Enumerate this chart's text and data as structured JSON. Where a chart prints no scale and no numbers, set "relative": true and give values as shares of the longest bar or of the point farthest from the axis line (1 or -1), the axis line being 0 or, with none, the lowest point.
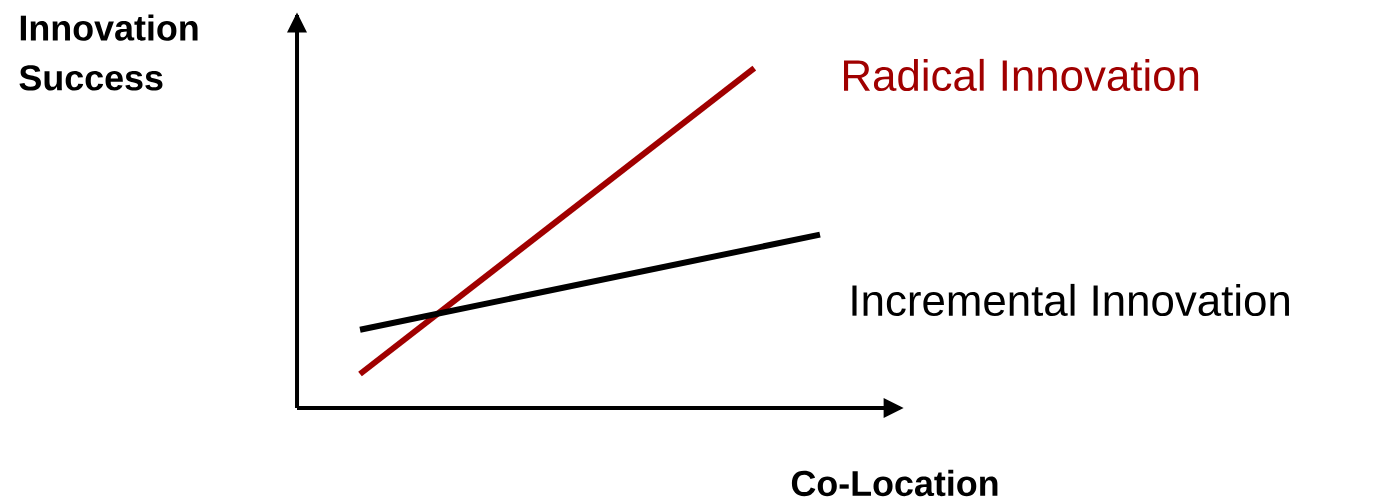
{
  "chart_data": {
    "type": "line",
    "relative": true,
    "xlabel": "Co-Location",
    "ylabel": "Innovation Success",
    "categories": [
      null,
      null,
      null,
      null,
      null,
      null,
      null,
      null
    ],
    "series": [
      {
        "name": "Radical Innovation",
        "color": "#a00000",
        "values": [
          0.1,
          null,
          null,
          null,
          null,
          null,
          1,
          null
        ]
      },
      {
        "name": "Incremental Innovation",
        "color": "#000000",
        "values": [
          0.23,
          null,
          null,
          null,
          null,
          null,
          null,
          0.51
        ]
      }
    ]
  }
}
